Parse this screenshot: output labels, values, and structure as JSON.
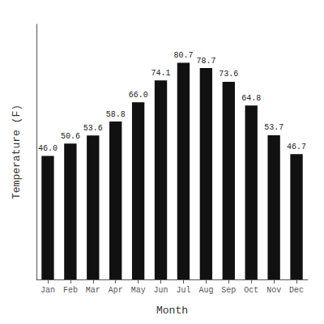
{
  "chart_data": {
    "type": "bar",
    "categories": [
      "Jan",
      "Feb",
      "Mar",
      "Apr",
      "May",
      "Jun",
      "Jul",
      "Aug",
      "Sep",
      "Oct",
      "Nov",
      "Dec"
    ],
    "values": [
      46.0,
      50.6,
      53.6,
      58.8,
      66.0,
      74.1,
      80.7,
      78.7,
      73.6,
      64.8,
      53.7,
      46.7
    ],
    "value_labels": [
      "46.0",
      "50.6",
      "53.6",
      "58.8",
      "66.0",
      "74.1",
      "80.7",
      "78.7",
      "73.6",
      "64.8",
      "53.7",
      "46.7"
    ],
    "color": "#111111",
    "xlabel": "Month",
    "ylabel": "Temperature (F)",
    "ylim": [
      0,
      95
    ],
    "yticks": [],
    "grid": false,
    "data_labels": true,
    "tick_labels": "x"
  }
}
